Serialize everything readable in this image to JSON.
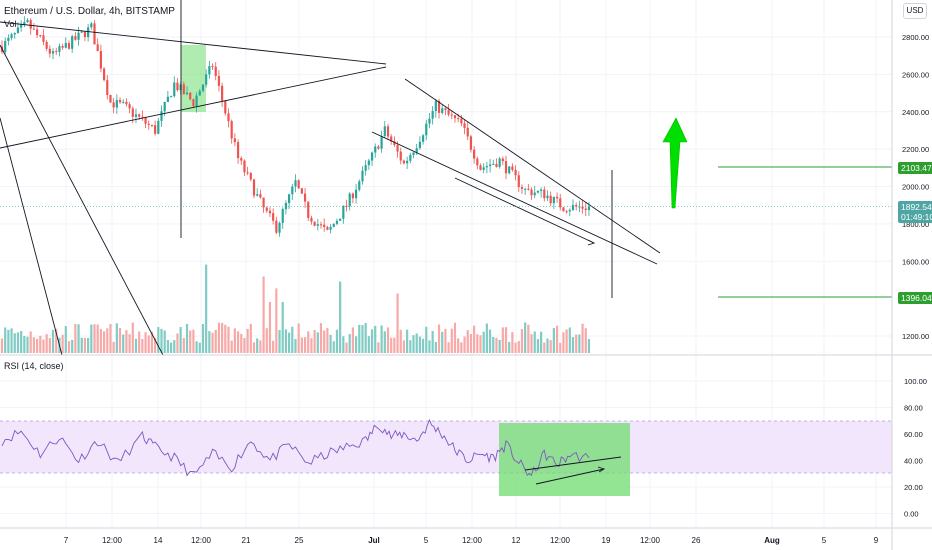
{
  "symbol": {
    "title": "Ethereum / U.S. Dollar, 4h, BITSTAMP",
    "volume_label": "Vol",
    "currency_button": "USD"
  },
  "colors": {
    "up": "#26a69a",
    "down": "#ef5350",
    "vol_up": "#80cbc4",
    "vol_down": "#f7a9a7",
    "rsi_line": "#7e57c2",
    "rsi_band": "#f1e6fc",
    "highlight": "#6fdc6f",
    "target": "#2e9e2e",
    "arrow": "#00e000",
    "current_price": "#4da6a3"
  },
  "chart_data": [
    {
      "type": "candlestick",
      "price_axis": {
        "ticks": [
          "2800.00",
          "2600.00",
          "2400.00",
          "2200.00",
          "2000.00",
          "1800.00",
          "1600.00",
          "1200.00"
        ],
        "ylim": [
          1080,
          2900
        ]
      },
      "time_axis": {
        "ticks": [
          "7",
          "12:00",
          "14",
          "12:00",
          "21",
          "25",
          "Jul",
          "5",
          "12:00",
          "12",
          "12:00",
          "19",
          "12:00",
          "26",
          "Aug",
          "5",
          "9"
        ]
      },
      "price_path": [
        [
          0,
          2750
        ],
        [
          4,
          2870
        ],
        [
          8,
          2700
        ],
        [
          14,
          2850
        ],
        [
          17,
          2450
        ],
        [
          19,
          2430
        ],
        [
          24,
          2300
        ],
        [
          27,
          2550
        ],
        [
          30,
          2450
        ],
        [
          33,
          2650
        ],
        [
          35,
          2400
        ],
        [
          37,
          2150
        ],
        [
          41,
          1880
        ],
        [
          43,
          1780
        ],
        [
          46,
          2020
        ],
        [
          48,
          1850
        ],
        [
          51,
          1750
        ],
        [
          54,
          1900
        ],
        [
          58,
          2160
        ],
        [
          60,
          2300
        ],
        [
          63,
          2120
        ],
        [
          65,
          2230
        ],
        [
          68,
          2430
        ],
        [
          72,
          2330
        ],
        [
          75,
          2100
        ],
        [
          78,
          2140
        ],
        [
          82,
          1980
        ],
        [
          85,
          1960
        ],
        [
          88,
          1890
        ],
        [
          92,
          1890
        ]
      ],
      "volume_spikes": [
        [
          32,
          520
        ],
        [
          41,
          450
        ],
        [
          42,
          300
        ],
        [
          43,
          380
        ],
        [
          44,
          300
        ],
        [
          53,
          420
        ],
        [
          62,
          350
        ]
      ],
      "markers": {
        "current_price": "1892.54",
        "countdown": "01:49:10",
        "target_high": "2103.47",
        "target_low": "1396.04"
      },
      "title": "Ethereum / U.S. Dollar, 4h, BITSTAMP"
    },
    {
      "type": "line",
      "title": "RSI (14, close)",
      "axis": {
        "ticks": [
          "100.00",
          "80.00",
          "60.00",
          "40.00",
          "20.00",
          "0.00"
        ],
        "ylim": [
          0,
          100
        ]
      },
      "band": [
        30,
        70
      ],
      "rsi_path": [
        [
          0,
          55
        ],
        [
          3,
          62
        ],
        [
          6,
          45
        ],
        [
          9,
          58
        ],
        [
          12,
          40
        ],
        [
          15,
          55
        ],
        [
          18,
          38
        ],
        [
          22,
          58
        ],
        [
          24,
          50
        ],
        [
          27,
          42
        ],
        [
          30,
          28
        ],
        [
          33,
          45
        ],
        [
          36,
          35
        ],
        [
          39,
          55
        ],
        [
          42,
          40
        ],
        [
          45,
          52
        ],
        [
          48,
          38
        ],
        [
          51,
          45
        ],
        [
          54,
          50
        ],
        [
          57,
          55
        ],
        [
          59,
          68
        ],
        [
          61,
          58
        ],
        [
          63,
          60
        ],
        [
          65,
          55
        ],
        [
          67,
          68
        ],
        [
          69,
          60
        ],
        [
          71,
          48
        ],
        [
          73,
          40
        ],
        [
          75,
          45
        ],
        [
          77,
          42
        ],
        [
          79,
          52
        ],
        [
          81,
          38
        ],
        [
          83,
          28
        ],
        [
          85,
          45
        ],
        [
          87,
          37
        ],
        [
          89,
          44
        ],
        [
          92,
          42
        ]
      ]
    }
  ]
}
